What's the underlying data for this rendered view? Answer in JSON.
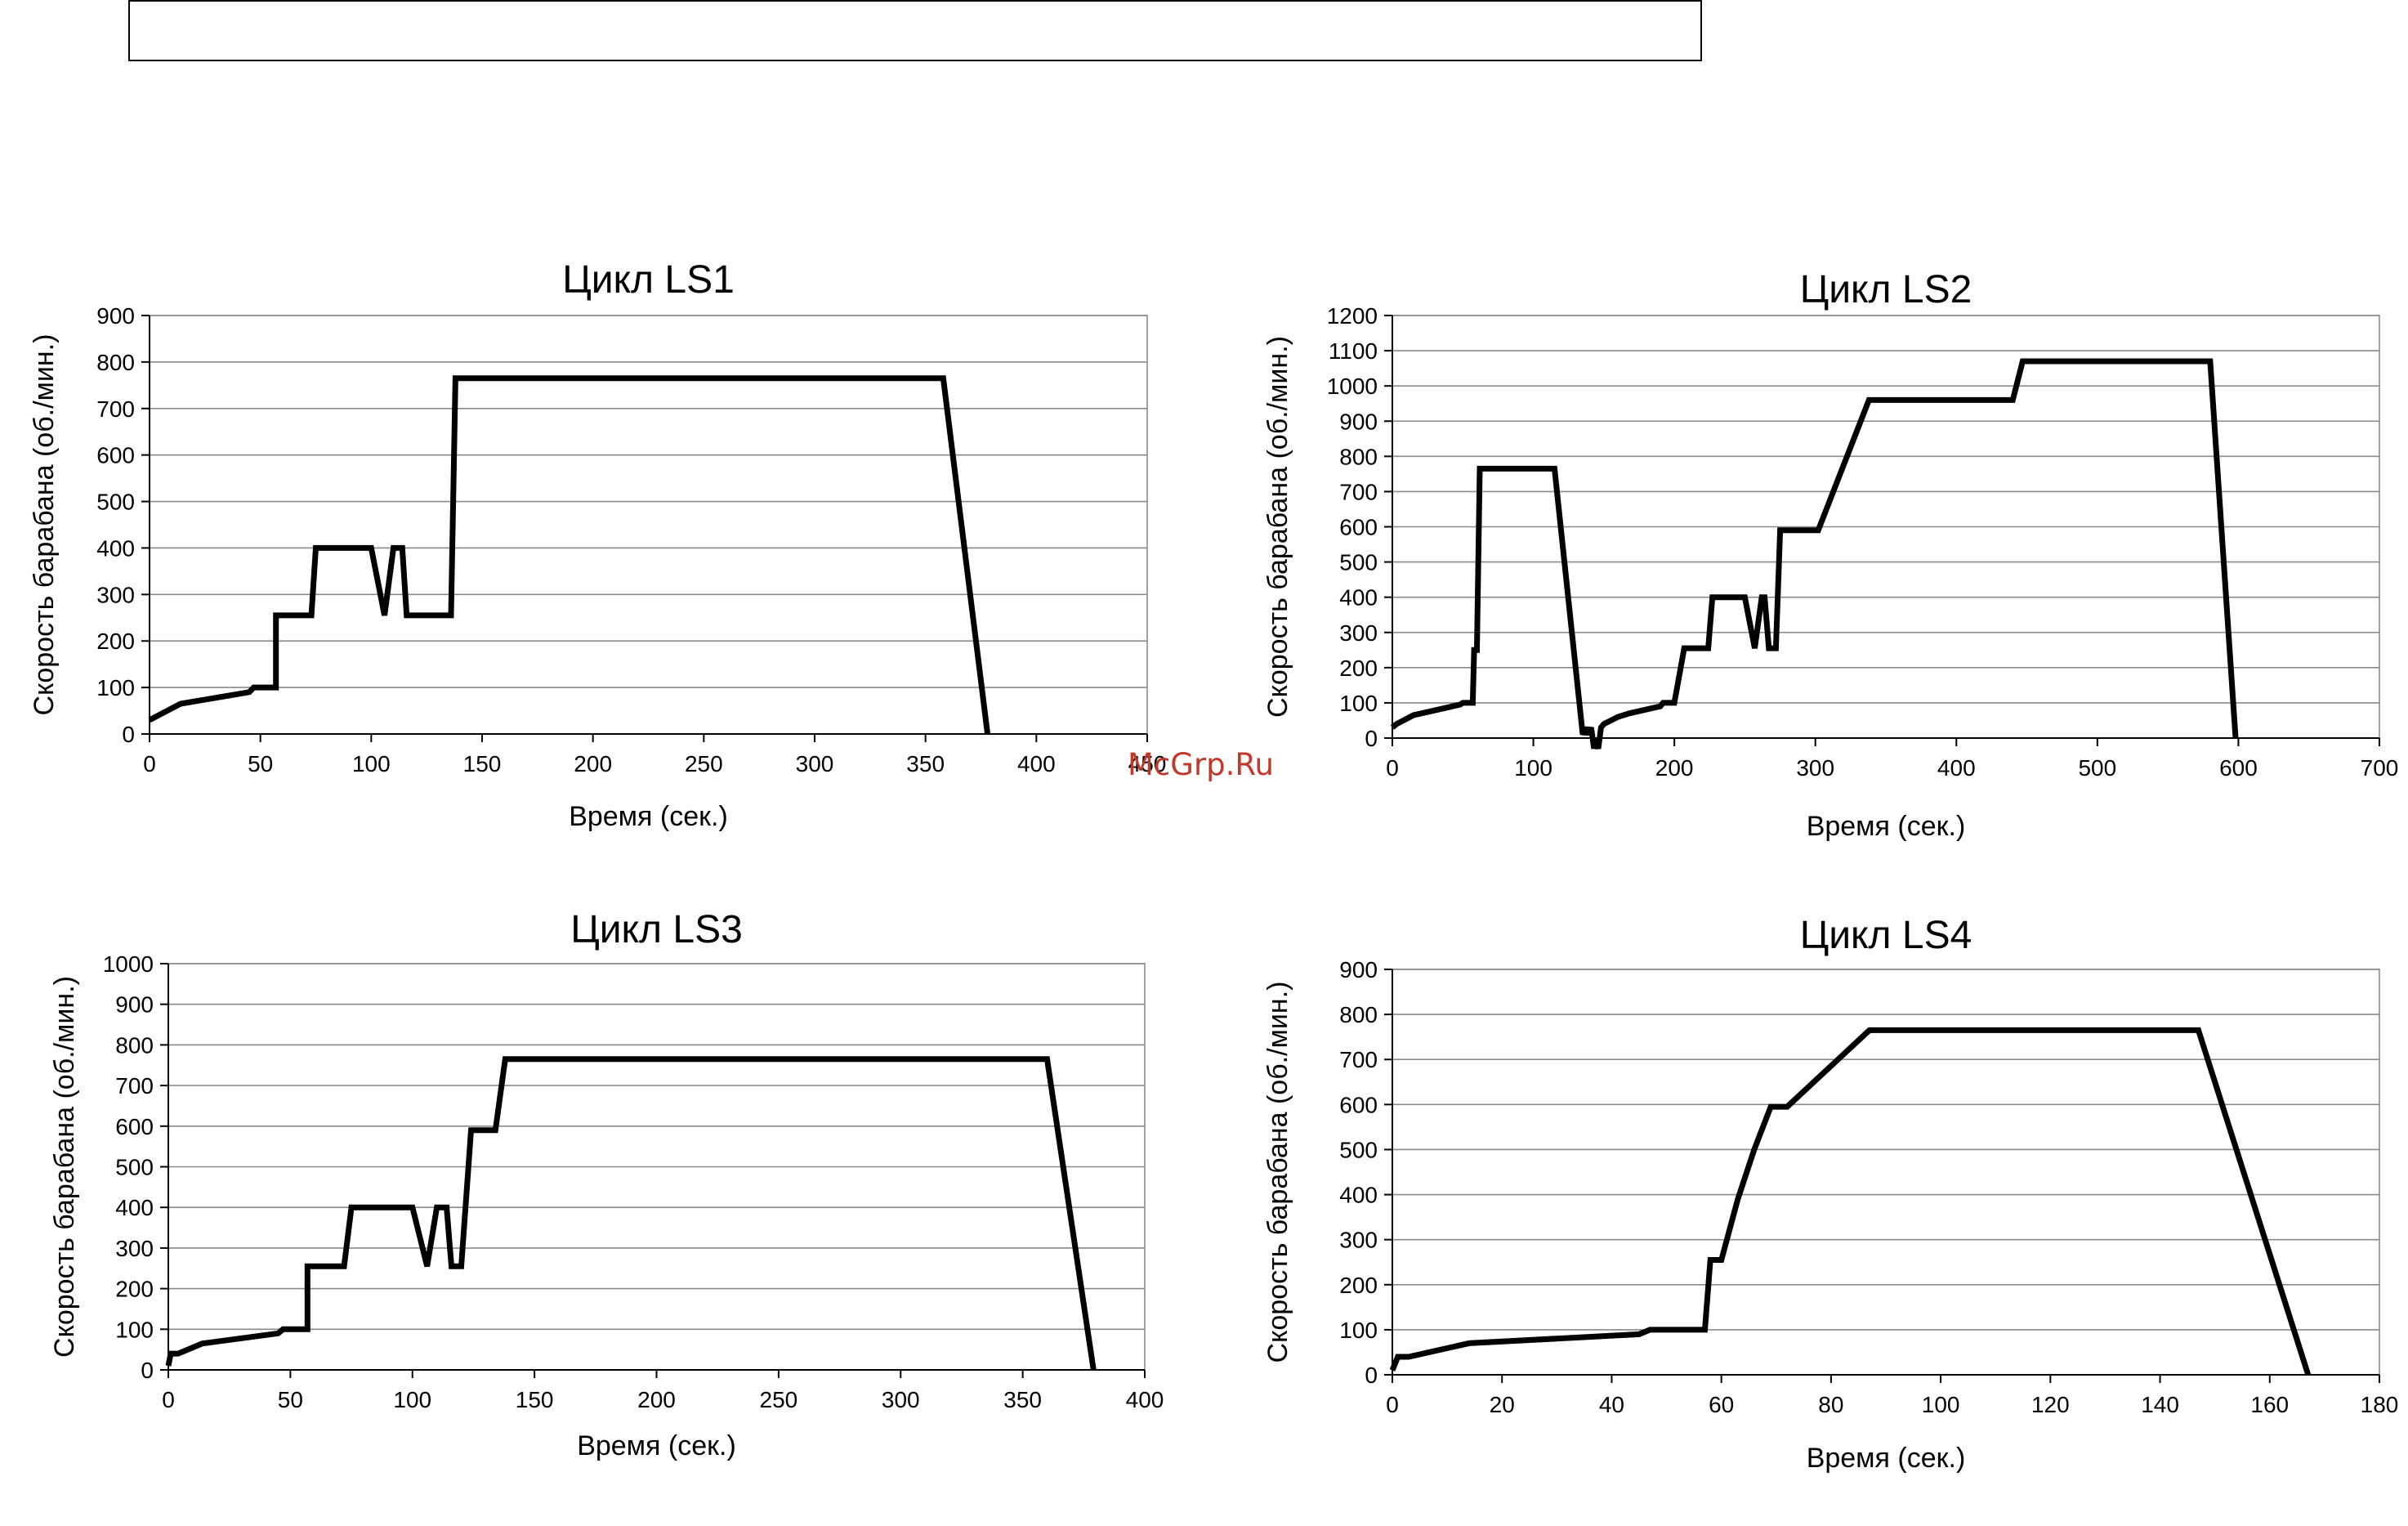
{
  "watermark": "McGrp.Ru",
  "chart_data": [
    {
      "type": "line",
      "title": "Цикл LS1",
      "xlabel": "Время (сек.)",
      "ylabel": "Скорость барабана (об./мин.)",
      "xlim": [
        0,
        450
      ],
      "ylim": [
        0,
        900
      ],
      "xticks": [
        0,
        50,
        100,
        150,
        200,
        250,
        300,
        350,
        400,
        450
      ],
      "yticks": [
        0,
        100,
        200,
        300,
        400,
        500,
        600,
        700,
        800,
        900
      ],
      "grid": true,
      "series": [
        {
          "x": [
            0,
            2,
            4,
            14,
            45,
            47,
            57,
            57,
            73,
            75,
            100,
            106,
            110,
            114,
            116,
            134,
            136,
            138,
            358,
            378
          ],
          "y": [
            30,
            35,
            40,
            65,
            90,
            100,
            100,
            255,
            255,
            400,
            400,
            255,
            400,
            400,
            255,
            255,
            255,
            765,
            765,
            0
          ]
        }
      ]
    },
    {
      "type": "line",
      "title": "Цикл LS2",
      "xlabel": "Время (сек.)",
      "ylabel": "Скорость барабана (об./мин.)",
      "xlim": [
        0,
        700
      ],
      "ylim": [
        0,
        1200
      ],
      "xticks": [
        0,
        100,
        200,
        300,
        400,
        500,
        600,
        700
      ],
      "yticks": [
        0,
        100,
        200,
        300,
        400,
        500,
        600,
        700,
        800,
        900,
        1000,
        1100,
        1200
      ],
      "grid": true,
      "series": [
        {
          "x": [
            0,
            3,
            15,
            48,
            50,
            57,
            58,
            60,
            62,
            115,
            135,
            137,
            139,
            141,
            143,
            144,
            146,
            148,
            150,
            160,
            168,
            190,
            192,
            200,
            207,
            224,
            227,
            250,
            257,
            262,
            264,
            267,
            272,
            275,
            295,
            302,
            338,
            440,
            447,
            580,
            598
          ],
          "y": [
            30,
            40,
            65,
            95,
            100,
            100,
            250,
            250,
            765,
            765,
            10,
            30,
            10,
            30,
            -30,
            0,
            -30,
            30,
            40,
            60,
            70,
            90,
            100,
            100,
            255,
            255,
            400,
            400,
            255,
            400,
            400,
            255,
            255,
            590,
            590,
            590,
            960,
            960,
            1070,
            1070,
            0
          ]
        }
      ]
    },
    {
      "type": "line",
      "title": "Цикл LS3",
      "xlabel": "Время (сек.)",
      "ylabel": "Скорость барабана (об./мин.)",
      "xlim": [
        0,
        400
      ],
      "ylim": [
        0,
        1000
      ],
      "xticks": [
        0,
        50,
        100,
        150,
        200,
        250,
        300,
        350,
        400
      ],
      "yticks": [
        0,
        100,
        200,
        300,
        400,
        500,
        600,
        700,
        800,
        900,
        1000
      ],
      "grid": true,
      "series": [
        {
          "x": [
            0,
            1,
            4,
            14,
            45,
            47,
            57,
            57,
            72,
            75,
            100,
            106,
            110,
            114,
            116,
            120,
            124,
            134,
            138,
            360,
            379
          ],
          "y": [
            10,
            40,
            40,
            65,
            90,
            100,
            100,
            255,
            255,
            400,
            400,
            255,
            400,
            400,
            255,
            255,
            590,
            590,
            765,
            765,
            0
          ]
        }
      ]
    },
    {
      "type": "line",
      "title": "Цикл LS4",
      "xlabel": "Время (сек.)",
      "ylabel": "Скорость барабана (об./мин.)",
      "xlim": [
        0,
        180
      ],
      "ylim": [
        0,
        900
      ],
      "xticks": [
        0,
        20,
        40,
        60,
        80,
        100,
        120,
        140,
        160,
        180
      ],
      "yticks": [
        0,
        100,
        200,
        300,
        400,
        500,
        600,
        700,
        800,
        900
      ],
      "grid": true,
      "series": [
        {
          "x": [
            0,
            1,
            3,
            14,
            45,
            47,
            57,
            58,
            60,
            63,
            66,
            69,
            72,
            87,
            147,
            167
          ],
          "y": [
            10,
            40,
            40,
            70,
            90,
            100,
            100,
            255,
            255,
            390,
            500,
            595,
            595,
            765,
            765,
            0
          ]
        }
      ]
    }
  ]
}
